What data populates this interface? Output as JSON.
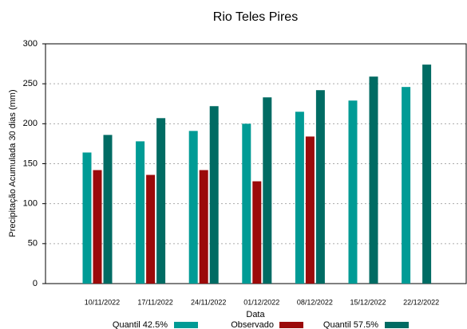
{
  "chart_data": {
    "type": "bar",
    "title": "Rio Teles Pires",
    "x_label": "Data",
    "y_label": "Precipitação Acumulada 30 dias (mm)",
    "categories": [
      "10/11/2022",
      "17/11/2022",
      "24/11/2022",
      "01/12/2022",
      "08/12/2022",
      "15/12/2022",
      "22/12/2022"
    ],
    "series": [
      {
        "name": "Quantil 42.5%",
        "color": "#009b95",
        "values": [
          164,
          178,
          191,
          200,
          215,
          229,
          246
        ]
      },
      {
        "name": "Observado",
        "color": "#9b0a0a",
        "values": [
          142,
          136,
          142,
          128,
          184,
          null,
          null
        ]
      },
      {
        "name": "Quantil 57.5%",
        "color": "#006b63",
        "values": [
          186,
          207,
          222,
          233,
          242,
          259,
          274
        ]
      }
    ],
    "ylim": [
      0,
      300
    ],
    "yticks": [
      0,
      50,
      100,
      150,
      200,
      250,
      300
    ],
    "grid": true,
    "legend": "bottom"
  }
}
